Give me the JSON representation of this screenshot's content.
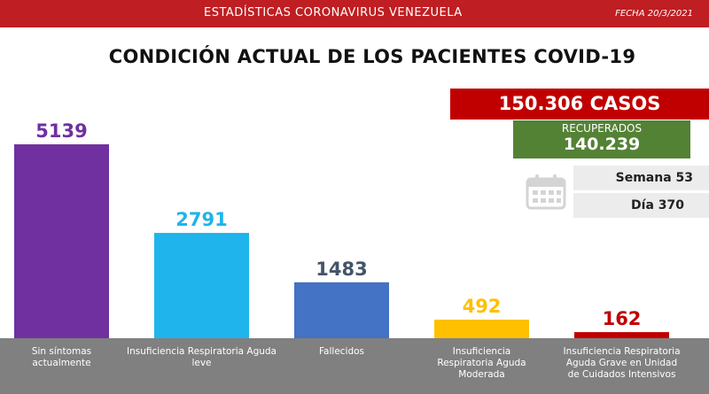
{
  "header": {
    "title": "ESTADÍSTICAS CORONAVIRUS VENEZUELA",
    "date": "FECHA 20/3/2021"
  },
  "main_title": "CONDICIÓN ACTUAL DE LOS PACIENTES COVID-19",
  "summary": {
    "casos": "150.306 CASOS",
    "recuperados_label": "RECUPERADOS",
    "recuperados_value": "140.239",
    "semana": "Semana 53",
    "dia": "Día 370"
  },
  "colors": {
    "header_red": "#bf1e22",
    "casos_red": "#c00000",
    "recuperados_green": "#548235",
    "baseline_gray": "#808080"
  },
  "chart_data": {
    "type": "bar",
    "categories": [
      "Sin síntomas actualmente",
      "Insuficiencia Respiratoria Aguda leve",
      "Fallecidos",
      "Insuficiencia Respiratoria Aguda Moderada",
      "Insuficiencia Respiratoria Aguda Grave en Unidad de Cuidados Intensivos"
    ],
    "values": [
      5139,
      2791,
      1483,
      492,
      162
    ],
    "bar_colors": [
      "#7030a0",
      "#1fb4ec",
      "#4472c4",
      "#ffc000",
      "#c00000"
    ],
    "label_colors": [
      "#7030a0",
      "#1fb4ec",
      "#44546a",
      "#ffc000",
      "#c00000"
    ],
    "title": "",
    "xlabel": "",
    "ylabel": "",
    "ylim": [
      0,
      5139
    ],
    "grid": false,
    "legend": "none"
  }
}
